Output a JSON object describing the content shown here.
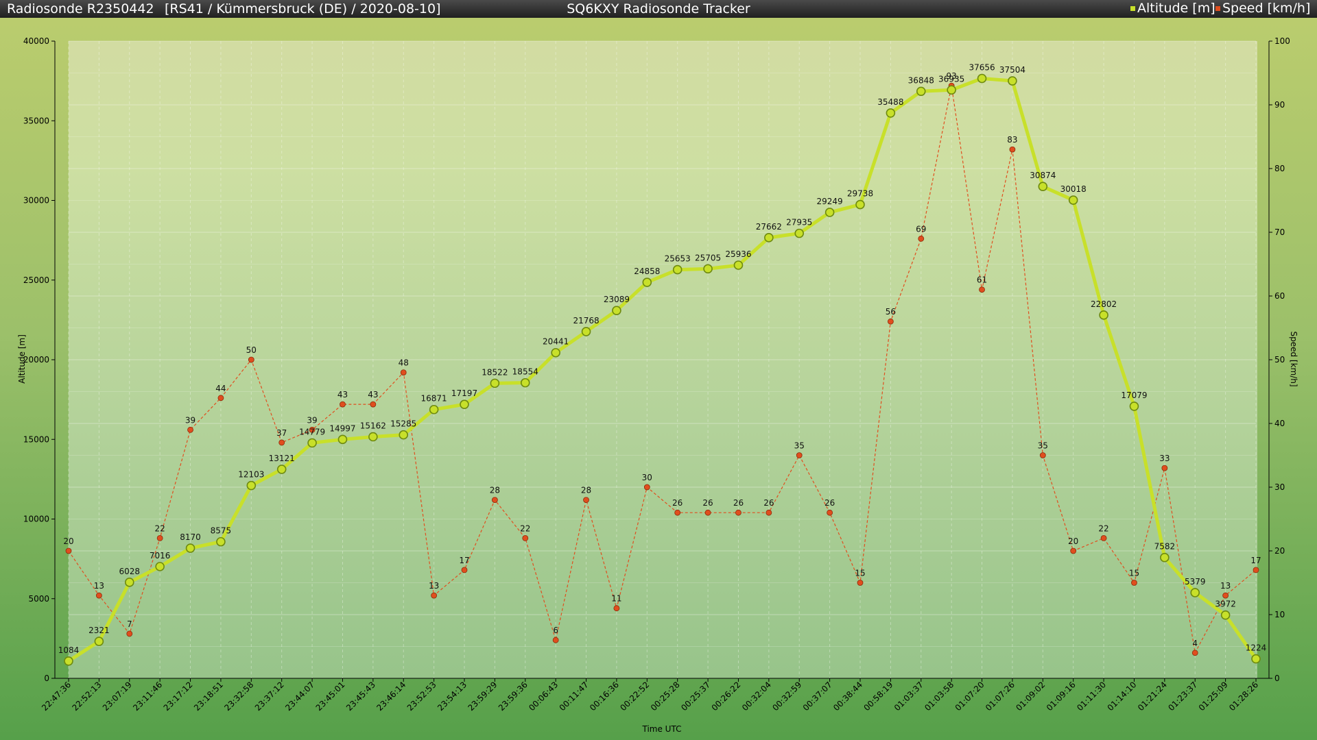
{
  "header": {
    "left_title": "Radiosonde R2350442",
    "info": "[RS41 / Kümmersbruck (DE) / 2020-08-10]",
    "center_title": "SQ6KXY Radiosonde Tracker"
  },
  "chart_data": {
    "type": "line",
    "xlabel": "Time UTC",
    "ylabel_left": "Altitude [m]",
    "ylabel_right": "Speed [km/h]",
    "ylim_left": [
      0,
      40000
    ],
    "ylim_right": [
      0,
      100
    ],
    "yticks_left": [
      0,
      5000,
      10000,
      15000,
      20000,
      25000,
      30000,
      35000,
      40000
    ],
    "yticks_right": [
      0,
      10,
      20,
      30,
      40,
      50,
      60,
      70,
      80,
      90,
      100
    ],
    "legend_position": "top-right",
    "grid": true,
    "categories": [
      "22:47:36",
      "22:52:13",
      "23:07:19",
      "23:11:46",
      "23:17:12",
      "23:18:51",
      "23:32:58",
      "23:37:12",
      "23:44:07",
      "23:45:01",
      "23:45:43",
      "23:46:14",
      "23:52:53",
      "23:54:13",
      "23:59:29",
      "23:59:36",
      "00:06:43",
      "00:11:47",
      "00:16:36",
      "00:22:52",
      "00:25:28",
      "00:25:37",
      "00:26:22",
      "00:32:04",
      "00:32:59",
      "00:37:07",
      "00:38:44",
      "00:58:19",
      "01:03:37",
      "01:03:58",
      "01:07:20",
      "01:07:26",
      "01:09:02",
      "01:09:16",
      "01:11:30",
      "01:14:10",
      "01:21:24",
      "01:23:37",
      "01:25:09",
      "01:28:26"
    ],
    "series": [
      {
        "name": "Altitude [m]",
        "axis": "left",
        "color": "#c8e02a",
        "values": [
          1084,
          2321,
          6028,
          7016,
          8170,
          8575,
          12103,
          13121,
          14779,
          14997,
          15162,
          15285,
          16871,
          17197,
          18522,
          18554,
          20441,
          21768,
          23089,
          24858,
          25653,
          25705,
          25936,
          27662,
          27935,
          29249,
          29738,
          35488,
          36848,
          36935,
          37656,
          37504,
          30874,
          30018,
          22802,
          17079,
          7582,
          5379,
          3972,
          1224
        ]
      },
      {
        "name": "Speed [km/h]",
        "axis": "right",
        "color": "#e04e1e",
        "values": [
          20,
          13,
          7,
          22,
          39,
          44,
          50,
          37,
          39,
          43,
          43,
          48,
          13,
          17,
          28,
          22,
          6,
          28,
          11,
          30,
          26,
          26,
          26,
          26,
          35,
          26,
          15,
          56,
          69,
          93,
          61,
          83,
          35,
          20,
          22,
          15,
          33,
          4,
          13,
          17
        ]
      }
    ]
  }
}
